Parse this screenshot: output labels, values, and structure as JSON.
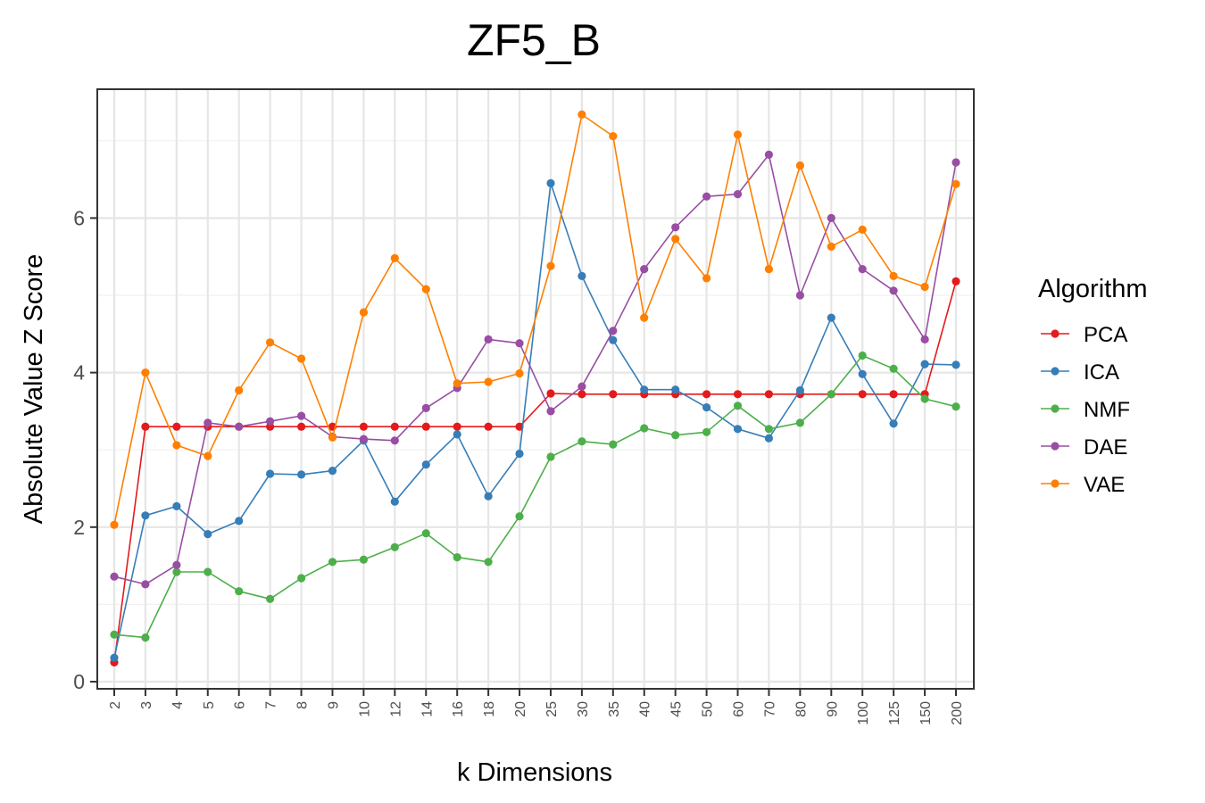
{
  "chart_data": {
    "type": "line",
    "title": "ZF5_B",
    "xlabel": "k Dimensions",
    "ylabel": "Absolute Value Z Score",
    "categories": [
      "2",
      "3",
      "4",
      "5",
      "6",
      "7",
      "8",
      "9",
      "10",
      "12",
      "14",
      "16",
      "18",
      "20",
      "25",
      "30",
      "35",
      "40",
      "45",
      "50",
      "60",
      "70",
      "80",
      "90",
      "100",
      "125",
      "150",
      "200"
    ],
    "ylim": [
      0,
      7.6
    ],
    "yticks": [
      0,
      2,
      4,
      6
    ],
    "grid": true,
    "legend": {
      "title": "Algorithm",
      "position": "right"
    },
    "series": [
      {
        "name": "PCA",
        "color": "#E41A1C",
        "values": [
          0.25,
          3.3,
          3.3,
          3.3,
          3.3,
          3.3,
          3.3,
          3.3,
          3.3,
          3.3,
          3.3,
          3.3,
          3.3,
          3.3,
          3.73,
          3.72,
          3.72,
          3.72,
          3.72,
          3.72,
          3.72,
          3.72,
          3.72,
          3.72,
          3.72,
          3.72,
          3.72,
          5.18
        ]
      },
      {
        "name": "ICA",
        "color": "#377EB8",
        "values": [
          0.31,
          2.15,
          2.27,
          1.91,
          2.08,
          2.69,
          2.68,
          2.73,
          3.12,
          2.33,
          2.81,
          3.2,
          2.4,
          2.95,
          6.45,
          5.25,
          4.42,
          3.78,
          3.78,
          3.55,
          3.27,
          3.15,
          3.77,
          4.71,
          3.98,
          3.34,
          4.11,
          4.1
        ]
      },
      {
        "name": "NMF",
        "color": "#4DAF4A",
        "values": [
          0.61,
          0.57,
          1.42,
          1.42,
          1.17,
          1.07,
          1.34,
          1.55,
          1.58,
          1.74,
          1.92,
          1.61,
          1.55,
          2.14,
          2.91,
          3.11,
          3.07,
          3.28,
          3.19,
          3.23,
          3.57,
          3.27,
          3.35,
          3.72,
          4.22,
          4.05,
          3.66,
          3.56
        ]
      },
      {
        "name": "DAE",
        "color": "#984EA3",
        "values": [
          1.36,
          1.26,
          1.51,
          3.35,
          3.3,
          3.37,
          3.44,
          3.17,
          3.14,
          3.12,
          3.54,
          3.8,
          4.43,
          4.38,
          3.5,
          3.82,
          4.54,
          5.34,
          5.88,
          6.28,
          6.31,
          6.82,
          5.0,
          6.0,
          5.34,
          5.06,
          4.43,
          6.72
        ]
      },
      {
        "name": "VAE",
        "color": "#FF7F00",
        "values": [
          2.03,
          4.0,
          3.06,
          2.92,
          3.77,
          4.39,
          4.18,
          3.16,
          4.78,
          5.48,
          5.08,
          3.86,
          3.88,
          3.99,
          5.38,
          7.34,
          7.06,
          4.71,
          5.73,
          5.22,
          7.08,
          5.34,
          6.68,
          5.63,
          5.85,
          5.25,
          5.11,
          6.44
        ]
      }
    ]
  }
}
